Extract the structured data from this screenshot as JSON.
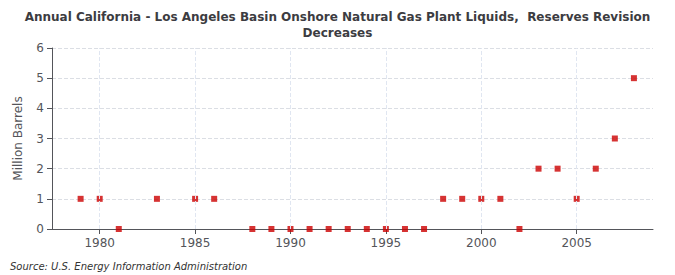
{
  "chart_data": {
    "type": "scatter",
    "title": "Annual California - Los Angeles Basin Onshore Natural Gas Plant Liquids,  Reserves Revision\nDecreases",
    "ylabel": "Million Barrels",
    "source": "Source: U.S. Energy Information Administration",
    "x": [
      1979,
      1980,
      1981,
      1983,
      1985,
      1986,
      1988,
      1989,
      1990,
      1991,
      1992,
      1993,
      1994,
      1995,
      1996,
      1997,
      1998,
      1999,
      2000,
      2001,
      2002,
      2003,
      2004,
      2005,
      2006,
      2007,
      2008
    ],
    "values": [
      1,
      1,
      0,
      1,
      1,
      1,
      0,
      0,
      0,
      0,
      0,
      0,
      0,
      0,
      0,
      0,
      1,
      1,
      1,
      1,
      0,
      2,
      2,
      1,
      2,
      3,
      5
    ],
    "color": "#cc0000",
    "marker": "square",
    "xlim": [
      1977.5,
      2009
    ],
    "ylim": [
      0,
      6
    ],
    "xticks": [
      1980,
      1985,
      1990,
      1995,
      2000,
      2005
    ],
    "yticks": [
      0,
      1,
      2,
      3,
      4,
      5,
      6
    ],
    "grid": true
  }
}
